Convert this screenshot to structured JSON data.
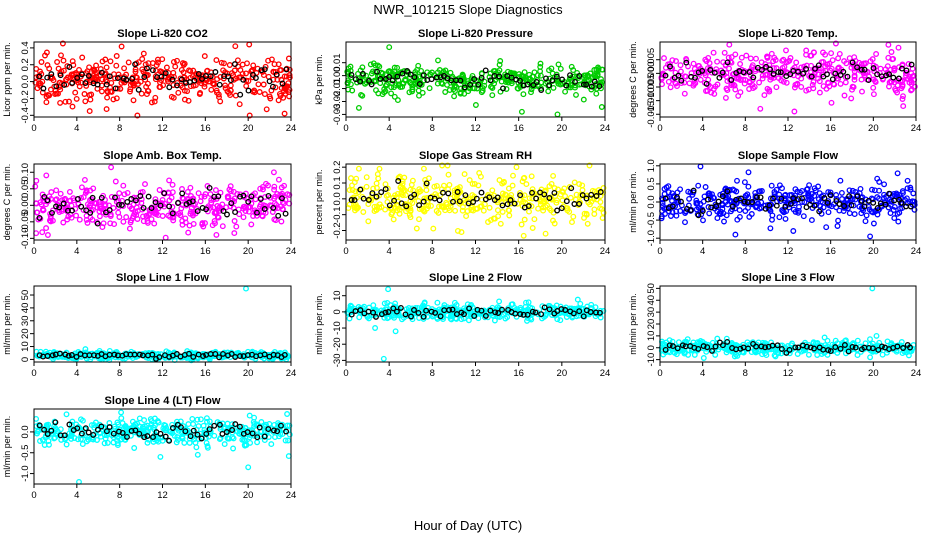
{
  "figure": {
    "title": "NWR_101215  Slope Diagnostics",
    "xlabel": "Hour of Day (UTC)"
  },
  "chart_data": [
    {
      "type": "scatter",
      "title": "Slope Li-820 CO2",
      "ylabel": "Licor ppm per min.",
      "color": "#ff0000",
      "xlim": [
        0,
        24
      ],
      "xticks": [
        0,
        4,
        8,
        12,
        16,
        20,
        24
      ],
      "ylim": [
        -0.42,
        0.47
      ],
      "yticks": [
        -0.4,
        -0.2,
        0.0,
        0.2,
        0.4
      ],
      "ytick_labels": [
        "-0.4",
        "-0.2",
        "0.0",
        "0.2",
        "0.4"
      ],
      "center": 0.03,
      "spread": 0.13,
      "outliers": [
        [
          5.2,
          -0.35
        ],
        [
          18.8,
          0.42
        ],
        [
          23.4,
          -0.38
        ],
        [
          20.1,
          0.44
        ]
      ]
    },
    {
      "type": "scatter",
      "title": "Slope Li-820 Pressure",
      "ylabel": "kPa per min.",
      "color": "#00cc00",
      "xlim": [
        0,
        24
      ],
      "xticks": [
        0,
        4,
        8,
        12,
        16,
        20,
        24
      ],
      "ylim": [
        -0.032,
        0.026
      ],
      "yticks": [
        -0.03,
        -0.02,
        -0.01,
        0.0,
        0.01
      ],
      "ytick_labels": [
        "-0.03",
        "-0.02",
        "-0.01",
        "0.00",
        "0.01"
      ],
      "center": -0.003,
      "spread": 0.006,
      "outliers": [
        [
          4.0,
          0.022
        ],
        [
          16.3,
          -0.028
        ],
        [
          19.6,
          -0.03
        ],
        [
          1.2,
          -0.025
        ]
      ]
    },
    {
      "type": "scatter",
      "title": "Slope Li-820 Temp.",
      "ylabel": "degrees C per min.",
      "color": "#ff00ff",
      "xlim": [
        0,
        24
      ],
      "xticks": [
        0,
        4,
        8,
        12,
        16,
        20,
        24
      ],
      "ylim": [
        -0.016,
        0.0115
      ],
      "yticks": [
        -0.015,
        -0.01,
        -0.005,
        0.0,
        0.005
      ],
      "ytick_labels": [
        "-0.015",
        "-0.010",
        "-0.005",
        "0.000",
        "0.005"
      ],
      "center": 0.0,
      "spread": 0.004,
      "outliers": [
        [
          6.5,
          0.0105
        ],
        [
          12.6,
          -0.014
        ],
        [
          9.4,
          -0.013
        ],
        [
          22.8,
          -0.012
        ]
      ]
    },
    {
      "type": "scatter",
      "title": "Slope Amb. Box Temp.",
      "ylabel": "degrees C per min.",
      "color": "#ff00ff",
      "xlim": [
        0,
        24
      ],
      "xticks": [
        0,
        4,
        8,
        12,
        16,
        20,
        24
      ],
      "ylim": [
        -0.105,
        0.125
      ],
      "yticks": [
        -0.1,
        -0.05,
        0.0,
        0.05,
        0.1
      ],
      "ytick_labels": [
        "-0.10",
        "-0.05",
        "0.00",
        "0.05",
        "0.10"
      ],
      "center": 0.0,
      "spread": 0.035,
      "outliers": [
        [
          7.2,
          0.115
        ],
        [
          12.3,
          -0.098
        ],
        [
          1.3,
          -0.09
        ],
        [
          22.4,
          0.1
        ]
      ]
    },
    {
      "type": "scatter",
      "title": "Slope Gas Stream RH",
      "ylabel": "percent per min.",
      "color": "#ffff00",
      "xlim": [
        0,
        24
      ],
      "xticks": [
        0,
        4,
        8,
        12,
        16,
        20,
        24
      ],
      "ylim": [
        -0.26,
        0.22
      ],
      "yticks": [
        -0.2,
        -0.1,
        0.0,
        0.1,
        0.2
      ],
      "ytick_labels": [
        "-0.2",
        "-0.1",
        "0.0",
        "0.1",
        "0.2"
      ],
      "center": 0.0,
      "spread": 0.07,
      "outliers": [
        [
          15.8,
          0.2
        ],
        [
          18.5,
          -0.22
        ],
        [
          3.1,
          0.19
        ],
        [
          10.7,
          -0.21
        ]
      ]
    },
    {
      "type": "scatter",
      "title": "Slope Sample Flow",
      "ylabel": "ml/min per min.",
      "color": "#0000ff",
      "xlim": [
        0,
        24
      ],
      "xticks": [
        0,
        4,
        8,
        12,
        16,
        20,
        24
      ],
      "ylim": [
        -1.05,
        1.05
      ],
      "yticks": [
        -1.0,
        -0.5,
        0.0,
        0.5,
        1.0
      ],
      "ytick_labels": [
        "-1.0",
        "-0.5",
        "0.0",
        "0.5",
        "1.0"
      ],
      "center": 0.0,
      "spread": 0.25,
      "outliers": [
        [
          3.8,
          0.98
        ],
        [
          19.7,
          -0.95
        ],
        [
          8.3,
          0.82
        ],
        [
          12.5,
          -0.8
        ]
      ]
    },
    {
      "type": "scatter",
      "title": "Slope Line 1 Flow",
      "ylabel": "ml/min per min.",
      "color": "#00ffff",
      "xlim": [
        0,
        24
      ],
      "xticks": [
        0,
        4,
        8,
        12,
        16,
        20,
        24
      ],
      "ylim": [
        -2,
        57
      ],
      "yticks": [
        0,
        10,
        20,
        30,
        40,
        50
      ],
      "ytick_labels": [
        "0",
        "10",
        "20",
        "30",
        "40",
        "50"
      ],
      "center": 3,
      "spread": 1.5,
      "outliers": [
        [
          19.8,
          55
        ],
        [
          20.4,
          6
        ],
        [
          4.8,
          8
        ]
      ]
    },
    {
      "type": "scatter",
      "title": "Slope Line 2 Flow",
      "ylabel": "ml/min per min.",
      "color": "#00ffff",
      "xlim": [
        0,
        24
      ],
      "xticks": [
        0,
        4,
        8,
        12,
        16,
        20,
        24
      ],
      "ylim": [
        -31,
        16
      ],
      "yticks": [
        -30,
        -20,
        -10,
        0,
        10
      ],
      "ytick_labels": [
        "-30",
        "-20",
        "-10",
        "0",
        "10"
      ],
      "center": 0,
      "spread": 2.5,
      "outliers": [
        [
          3.5,
          -29
        ],
        [
          3.9,
          14
        ],
        [
          2.7,
          -10
        ],
        [
          4.6,
          -12
        ]
      ]
    },
    {
      "type": "scatter",
      "title": "Slope Line 3 Flow",
      "ylabel": "ml/min per min.",
      "color": "#00ffff",
      "xlim": [
        0,
        24
      ],
      "xticks": [
        0,
        4,
        8,
        12,
        16,
        20,
        24
      ],
      "ylim": [
        -12,
        52
      ],
      "yticks": [
        -10,
        0,
        10,
        20,
        30,
        40,
        50
      ],
      "ytick_labels": [
        "-10",
        "0",
        "10",
        "20",
        "30",
        "40",
        "50"
      ],
      "center": 0,
      "spread": 3,
      "outliers": [
        [
          19.9,
          50
        ],
        [
          20.3,
          10
        ],
        [
          19.7,
          -8
        ]
      ]
    },
    {
      "type": "scatter",
      "title": "Slope Line 4 (LT) Flow",
      "ylabel": "ml/min per min.",
      "color": "#00ffff",
      "xlim": [
        0,
        24
      ],
      "xticks": [
        0,
        4,
        8,
        12,
        16,
        20,
        24
      ],
      "ylim": [
        -1.25,
        0.55
      ],
      "yticks": [
        -1.0,
        -0.5,
        0.0
      ],
      "ytick_labels": [
        "-1.0",
        "-0.5",
        "0.0"
      ],
      "center": 0.0,
      "spread": 0.16,
      "outliers": [
        [
          4.2,
          -1.2
        ],
        [
          20.0,
          -0.85
        ],
        [
          11.8,
          -0.6
        ],
        [
          15.3,
          -0.55
        ]
      ]
    }
  ]
}
